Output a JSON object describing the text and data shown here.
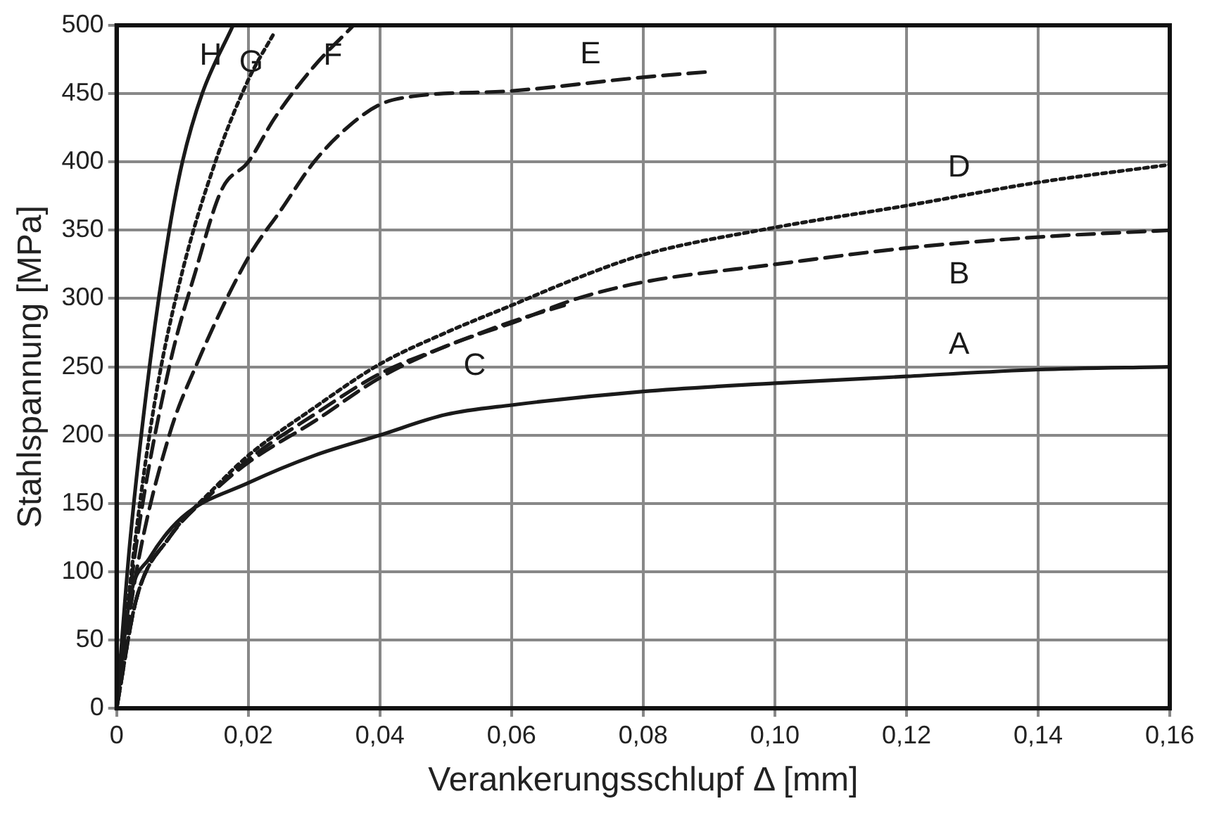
{
  "chart_data": {
    "type": "line",
    "xlabel": "Verankerungsschlupf Δ [mm]",
    "ylabel": "Stahlspannung [MPa]",
    "xlim": [
      0,
      0.16
    ],
    "xticks": [
      0,
      {
        "value": 0.02,
        "label": "0,02"
      },
      {
        "value": 0.04,
        "label": "0,04"
      },
      {
        "value": 0.06,
        "label": "0,06"
      },
      {
        "value": 0.08,
        "label": "0,08"
      },
      {
        "value": 0.1,
        "label": "0,10"
      },
      {
        "value": 0.12,
        "label": "0,12"
      },
      {
        "value": 0.14,
        "label": "0,14"
      },
      {
        "value": 0.16,
        "label": "0,16"
      }
    ],
    "ylim": [
      0,
      500
    ],
    "yticks": [
      0,
      50,
      100,
      150,
      200,
      250,
      300,
      350,
      400,
      450,
      500
    ],
    "grid": true,
    "legend": false,
    "marker": "none",
    "series": [
      {
        "name": "A",
        "color": "#1a1a1a",
        "line_style": "solid",
        "x": [
          0,
          0.002,
          0.005,
          0.01,
          0.02,
          0.03,
          0.04,
          0.05,
          0.06,
          0.08,
          0.1,
          0.12,
          0.14,
          0.16
        ],
        "values": [
          0,
          80,
          110,
          140,
          165,
          185,
          200,
          215,
          222,
          232,
          238,
          243,
          248,
          250
        ]
      },
      {
        "name": "B",
        "color": "#1a1a1a",
        "line_style": "dashed",
        "x": [
          0,
          0.003,
          0.008,
          0.015,
          0.02,
          0.03,
          0.04,
          0.05,
          0.06,
          0.07,
          0.08,
          0.1,
          0.12,
          0.14,
          0.16
        ],
        "values": [
          0,
          80,
          125,
          160,
          180,
          210,
          242,
          265,
          282,
          300,
          312,
          325,
          337,
          345,
          350
        ]
      },
      {
        "name": "C",
        "color": "#1a1a1a",
        "line_style": "dashed",
        "x": [
          0,
          0.003,
          0.008,
          0.015,
          0.02,
          0.03,
          0.04,
          0.05,
          0.06,
          0.068
        ],
        "values": [
          0,
          80,
          125,
          160,
          182,
          215,
          245,
          265,
          283,
          295
        ]
      },
      {
        "name": "D",
        "color": "#1a1a1a",
        "line_style": "dotted",
        "x": [
          0,
          0.003,
          0.008,
          0.015,
          0.02,
          0.03,
          0.04,
          0.05,
          0.06,
          0.07,
          0.08,
          0.1,
          0.12,
          0.14,
          0.16
        ],
        "values": [
          0,
          80,
          125,
          162,
          185,
          220,
          252,
          275,
          295,
          315,
          332,
          352,
          368,
          385,
          398
        ]
      },
      {
        "name": "E",
        "color": "#1a1a1a",
        "line_style": "dashed",
        "x": [
          0,
          0.003,
          0.008,
          0.012,
          0.02,
          0.025,
          0.03,
          0.035,
          0.04,
          0.045,
          0.06,
          0.08,
          0.09
        ],
        "values": [
          0,
          100,
          200,
          250,
          330,
          365,
          400,
          425,
          442,
          448,
          452,
          462,
          466
        ]
      },
      {
        "name": "F",
        "color": "#1a1a1a",
        "line_style": "dashed",
        "x": [
          0,
          0.003,
          0.008,
          0.012,
          0.016,
          0.02,
          0.024,
          0.03,
          0.036
        ],
        "values": [
          0,
          120,
          250,
          320,
          380,
          400,
          432,
          470,
          500
        ]
      },
      {
        "name": "G",
        "color": "#1a1a1a",
        "line_style": "dotted",
        "x": [
          0,
          0.003,
          0.006,
          0.01,
          0.015,
          0.02,
          0.024
        ],
        "values": [
          0,
          130,
          230,
          320,
          400,
          460,
          495
        ]
      },
      {
        "name": "H",
        "color": "#1a1a1a",
        "line_style": "solid",
        "x": [
          0,
          0.002,
          0.005,
          0.008,
          0.01,
          0.013,
          0.0177
        ],
        "values": [
          0,
          120,
          250,
          350,
          400,
          450,
          500
        ]
      }
    ]
  }
}
